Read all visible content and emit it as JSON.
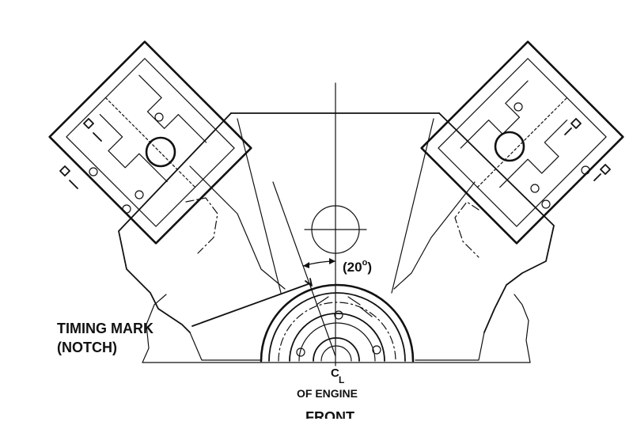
{
  "labels": {
    "angle": "(20",
    "angle_unit": "o",
    "angle_close": ")",
    "timing_mark_line1": "TIMING MARK",
    "timing_mark_line2": "(NOTCH)",
    "centerline_symbol": "C",
    "centerline_sub": "L",
    "of_engine": "OF ENGINE",
    "front": "FRONT"
  }
}
